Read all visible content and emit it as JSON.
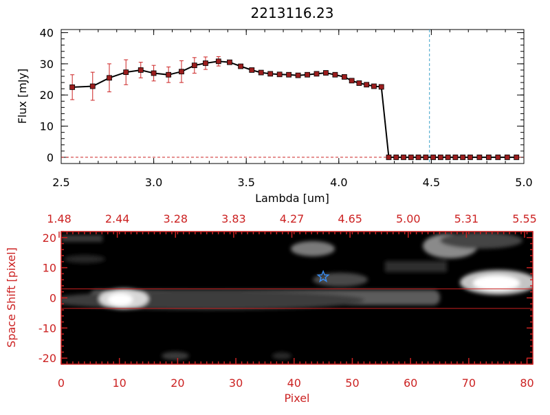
{
  "chart_data": [
    {
      "type": "line",
      "title": "2213116.23",
      "xlabel": "Lambda [um]",
      "ylabel": "Flux [mJy]",
      "xlim": [
        2.5,
        5.0
      ],
      "ylim": [
        -2,
        41
      ],
      "xticks": [
        "2.5",
        "3.0",
        "3.5",
        "4.0",
        "4.5",
        "5.0"
      ],
      "yticks": [
        "0",
        "10",
        "20",
        "30",
        "40"
      ],
      "series": [
        {
          "color": "#000000",
          "marker_color": "#9b1d1d",
          "errorbar_color": "#cc2222",
          "x": [
            2.56,
            2.67,
            2.76,
            2.85,
            2.93,
            3.0,
            3.08,
            3.15,
            3.22,
            3.28,
            3.35,
            3.41,
            3.47,
            3.53,
            3.58,
            3.63,
            3.68,
            3.73,
            3.78,
            3.83,
            3.88,
            3.93,
            3.98,
            4.03,
            4.07,
            4.11,
            4.15,
            4.19,
            4.23,
            4.27,
            4.31,
            4.35,
            4.39,
            4.43,
            4.47,
            4.51,
            4.55,
            4.59,
            4.63,
            4.67,
            4.71,
            4.76,
            4.81,
            4.86,
            4.91,
            4.96
          ],
          "y": [
            22.5,
            22.8,
            25.5,
            27.3,
            28.0,
            27.0,
            26.5,
            27.5,
            29.5,
            30.2,
            30.8,
            30.5,
            29.2,
            28.0,
            27.2,
            26.8,
            26.6,
            26.5,
            26.3,
            26.5,
            26.8,
            27.1,
            26.5,
            25.8,
            24.6,
            23.8,
            23.3,
            22.8,
            22.6,
            0,
            0,
            0,
            0,
            0,
            0,
            0,
            0,
            0,
            0,
            0,
            0,
            0,
            0,
            0,
            0,
            0
          ],
          "yerr": [
            4.0,
            4.5,
            4.5,
            4.0,
            2.5,
            2.5,
            2.5,
            3.5,
            2.5,
            2.0,
            1.5,
            0.5,
            0.5,
            0,
            0,
            0,
            0,
            0,
            0,
            0,
            0,
            0,
            0,
            0,
            0,
            0,
            0,
            0,
            0,
            0,
            0,
            0,
            0,
            0,
            0,
            0,
            0,
            0,
            0,
            0,
            0,
            0,
            0,
            0,
            0,
            0
          ]
        }
      ],
      "reference_lines": [
        {
          "orientation": "vertical",
          "x": 4.49,
          "color": "#3aa0c8",
          "style": "dashed"
        },
        {
          "orientation": "horizontal",
          "y": 0,
          "color": "#cc2222",
          "style": "dashed"
        }
      ]
    },
    {
      "type": "heatmap",
      "xlabel": "Pixel",
      "ylabel": "Space Shift [pixel]",
      "xlim": [
        0,
        81
      ],
      "ylim": [
        -22,
        22
      ],
      "xticks": [
        "0",
        "10",
        "20",
        "30",
        "40",
        "50",
        "60",
        "70",
        "80"
      ],
      "yticks": [
        "-20",
        "-10",
        "0",
        "10",
        "20"
      ],
      "top_axis_ticks": [
        "1.48",
        "2.44",
        "3.28",
        "3.83",
        "4.27",
        "4.65",
        "5.00",
        "5.31",
        "5.55"
      ],
      "extraction_window": [
        -3.5,
        3.0
      ],
      "marker": {
        "type": "star",
        "x": 45,
        "y": 7,
        "color": "#3a8cf0"
      },
      "axis_color": "#cc2222",
      "colormap": "gray"
    }
  ]
}
